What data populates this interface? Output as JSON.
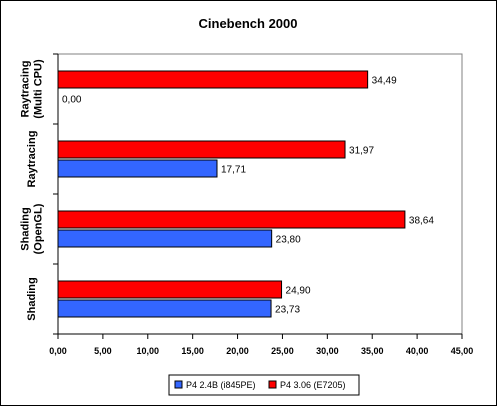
{
  "chart_data": {
    "type": "bar",
    "orientation": "horizontal",
    "title": "Cinebench 2000",
    "categories": [
      "Raytracing (Multi CPU)",
      "Raytracing",
      "Shading (OpenGL)",
      "Shading"
    ],
    "category_label_lines": [
      [
        "Raytracing",
        "(Multi CPU)"
      ],
      [
        "Raytracing"
      ],
      [
        "Shading",
        "(OpenGL)"
      ],
      [
        "Shading"
      ]
    ],
    "series": [
      {
        "name": "P4 3.06 (E7205)",
        "color": "#ff0000",
        "values": [
          34.49,
          31.97,
          38.64,
          24.9
        ],
        "labels": [
          "34,49",
          "31,97",
          "38,64",
          "24,90"
        ]
      },
      {
        "name": "P4 2.4B (i845PE)",
        "color": "#3366ff",
        "values": [
          0.0,
          17.71,
          23.8,
          23.73
        ],
        "labels": [
          "0,00",
          "17,71",
          "23,80",
          "23,73"
        ]
      }
    ],
    "legend_order": [
      "P4 2.4B (i845PE)",
      "P4 3.06 (E7205)"
    ],
    "xlim": [
      0,
      45
    ],
    "xticks": [
      0,
      5,
      10,
      15,
      20,
      25,
      30,
      35,
      40,
      45
    ],
    "xtick_labels": [
      "0,00",
      "5,00",
      "10,00",
      "15,00",
      "20,00",
      "25,00",
      "30,00",
      "35,00",
      "40,00",
      "45,00"
    ],
    "xlabel": "",
    "ylabel": "",
    "grid": false,
    "legend_position": "bottom"
  }
}
